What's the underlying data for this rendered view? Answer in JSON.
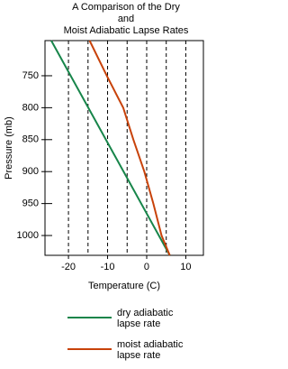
{
  "chart_data": {
    "type": "line",
    "title": [
      "A Comparison of the Dry",
      "and",
      "Moist Adiabatic Lapse Rates"
    ],
    "x_label": "Temperature (C)",
    "y_label": "Pressure (mb)",
    "xlim": [
      -26,
      14.5
    ],
    "xticks": [
      -20,
      -10,
      0,
      10
    ],
    "xgrid": [
      -20,
      -15,
      -10,
      -5,
      0,
      5,
      10
    ],
    "ylim": [
      695,
      1031
    ],
    "yreverse": true,
    "yticks": [
      750,
      800,
      850,
      900,
      950,
      1000
    ],
    "series": [
      {
        "name": "dry adiabatic lapse rate",
        "color": "#17854a",
        "x": [
          -24.4,
          5.9
        ],
        "values": [
          695,
          1031
        ]
      },
      {
        "name": "moist adiabatic lapse rate",
        "color": "#c8420a",
        "x": [
          -14.6,
          -10.2,
          -6.0,
          -3.4,
          -0.6,
          1.7,
          3.8,
          5.9
        ],
        "values": [
          695,
          750,
          800,
          850,
          900,
          950,
          1000,
          1031
        ]
      }
    ]
  }
}
